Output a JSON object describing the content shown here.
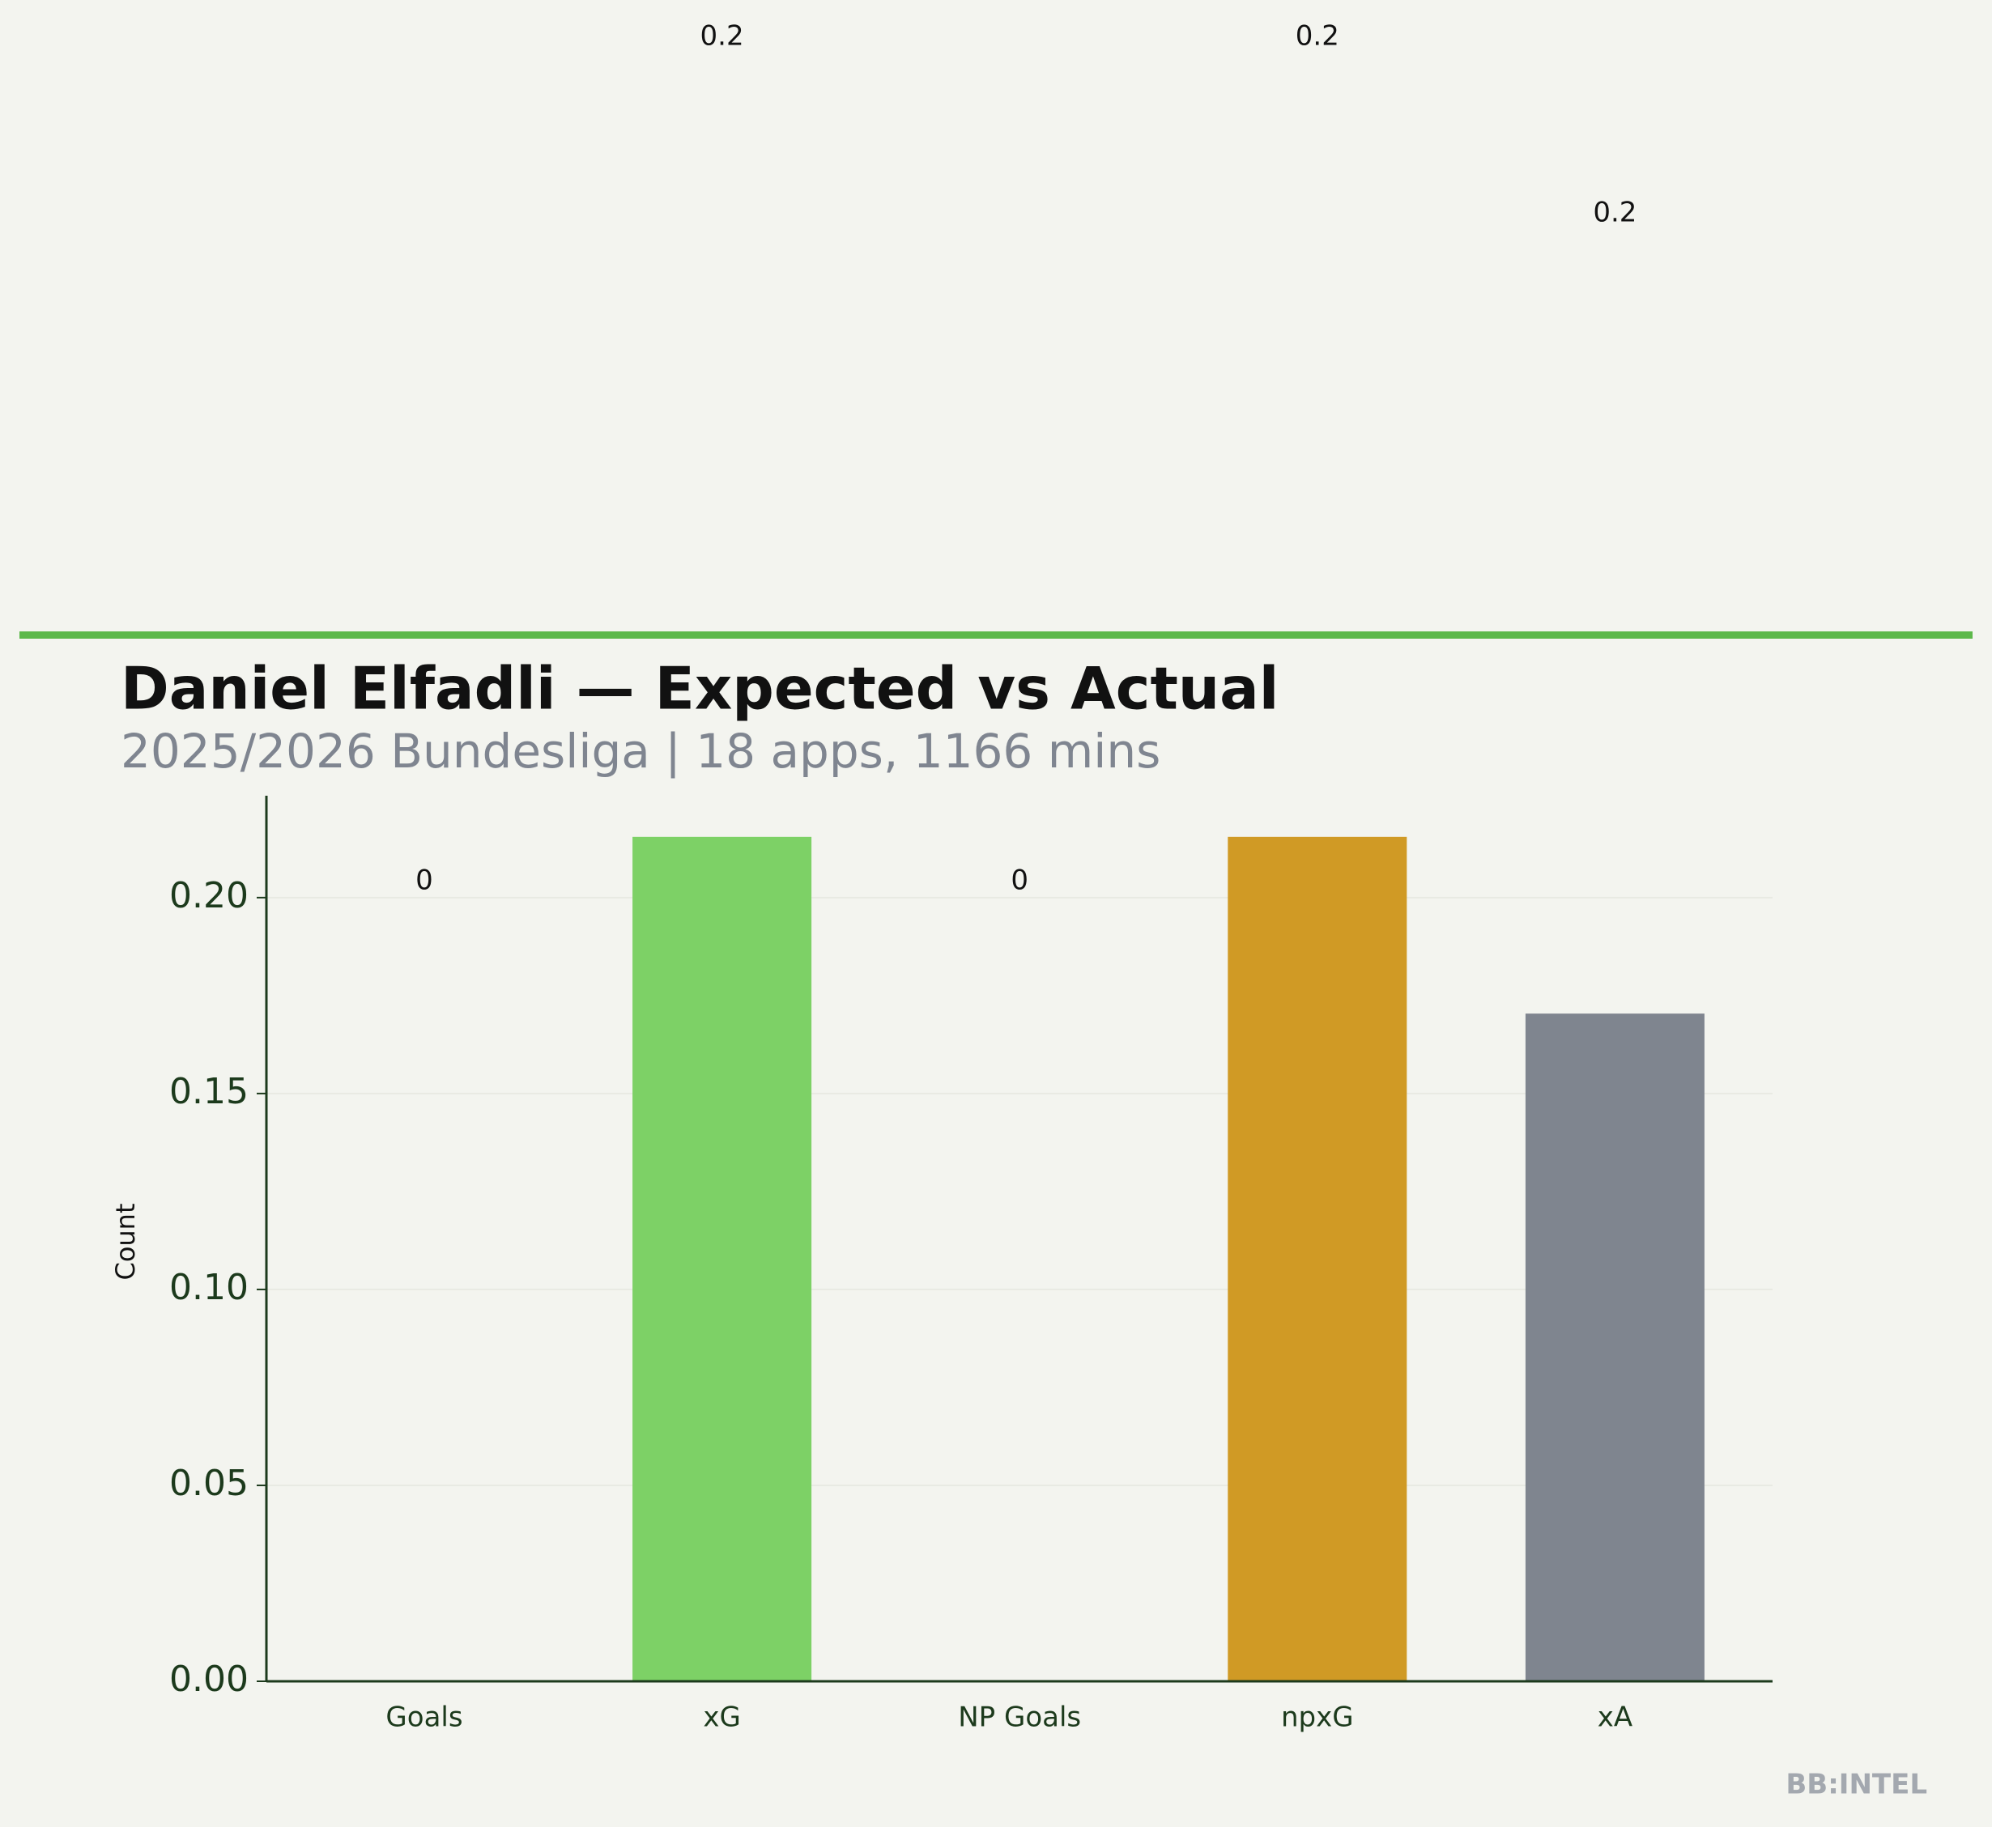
{
  "chart_data": {
    "type": "bar",
    "title": "Daniel Elfadli — Expected vs Actual",
    "subtitle": "2025/2026 Bundesliga | 18 apps, 1166 mins",
    "y_label": "Count",
    "watermark": "BB:INTEL",
    "categories": [
      "Goals",
      "xG",
      "NP Goals",
      "npxG",
      "xA"
    ],
    "values": [
      0,
      0.2155,
      0,
      0.2155,
      0.1704
    ],
    "value_labels": [
      "0",
      "0.2",
      "0",
      "0.2",
      "0.2"
    ],
    "colors": [
      null,
      "#7dd166",
      null,
      "#d09a25",
      "#7f858f"
    ],
    "ylim": [
      0,
      0.226
    ],
    "yticks": [
      {
        "value": 0,
        "label": "0.00"
      },
      {
        "value": 0.05,
        "label": "0.05"
      },
      {
        "value": 0.1,
        "label": "0.10"
      },
      {
        "value": 0.15,
        "label": "0.15"
      },
      {
        "value": 0.2,
        "label": "0.20"
      }
    ],
    "grid": true
  }
}
